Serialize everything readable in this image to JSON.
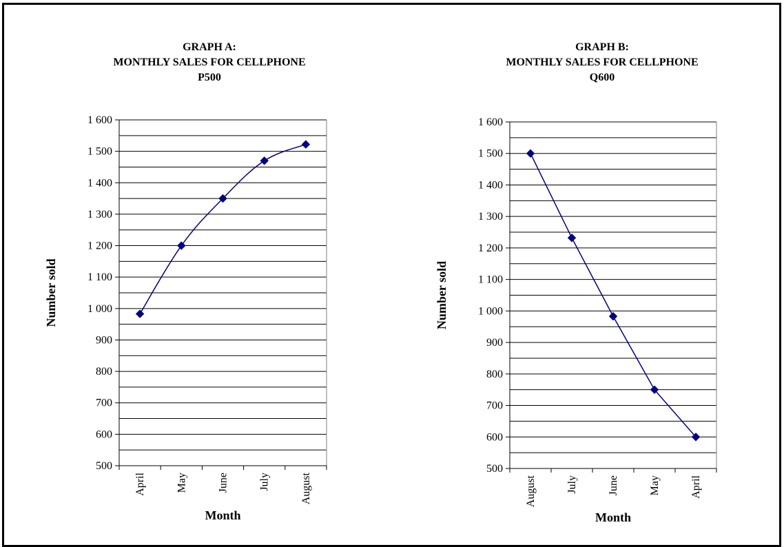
{
  "chart_data": [
    {
      "type": "line",
      "title_lines": [
        "GRAPH A:",
        "MONTHLY SALES FOR CELLPHONE",
        "P500"
      ],
      "xlabel": "Month",
      "ylabel": "Number sold",
      "categories": [
        "April",
        "May",
        "June",
        "July",
        "August"
      ],
      "values": [
        983,
        1200,
        1350,
        1470,
        1522
      ],
      "ylim": [
        500,
        1600
      ],
      "yticks": [
        500,
        600,
        700,
        800,
        900,
        1000,
        1100,
        1200,
        1300,
        1400,
        1500,
        1600
      ],
      "ytick_labels": [
        "500",
        "600",
        "700",
        "800",
        "900",
        "1 000",
        "1 100",
        "1 200",
        "1 300",
        "1 400",
        "1 500",
        "1 600"
      ],
      "grid": true,
      "line_color": "#000080",
      "marker": "diamond",
      "smooth": true
    },
    {
      "type": "line",
      "title_lines": [
        "GRAPH B:",
        "MONTHLY SALES FOR CELLPHONE",
        "Q600"
      ],
      "xlabel": "Month",
      "ylabel": "Number sold",
      "categories": [
        "August",
        "July",
        "June",
        "May",
        "April"
      ],
      "values": [
        1500,
        1232,
        983,
        750,
        600
      ],
      "ylim": [
        500,
        1600
      ],
      "yticks": [
        500,
        600,
        700,
        800,
        900,
        1000,
        1100,
        1200,
        1300,
        1400,
        1500,
        1600
      ],
      "ytick_labels": [
        "500",
        "600",
        "700",
        "800",
        "900",
        "1 000",
        "1 100",
        "1 200",
        "1 300",
        "1 400",
        "1 500",
        "1 600"
      ],
      "grid": true,
      "line_color": "#000080",
      "marker": "diamond",
      "smooth": false
    }
  ]
}
